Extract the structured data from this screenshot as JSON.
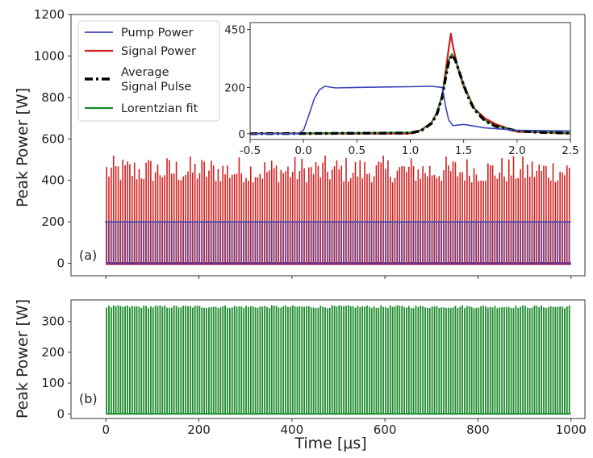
{
  "colors": {
    "pump": "#3b46b8",
    "signal": "#d11f1f",
    "average": "#000000",
    "lorentzian": "#1a8a2a",
    "overlap": "#6a2f9a"
  },
  "chart_data": [
    {
      "id": "panel-a",
      "type": "line",
      "panel_label": "(a)",
      "xlabel": "",
      "ylabel": "Peak Power [W]",
      "xlim": [
        -75,
        1030
      ],
      "ylim": [
        -60,
        1200
      ],
      "yticks": [
        0,
        200,
        400,
        600,
        800,
        1000,
        1200
      ],
      "pulse_train": {
        "x_start": 0,
        "x_end": 1000,
        "pulse_period": 5,
        "pump_level": 200,
        "signal_peak_range": [
          390,
          520
        ],
        "signal_peak_typical": 440
      },
      "legend": {
        "placement": "top-left",
        "entries": [
          "Pump Power",
          "Signal Power",
          "Average\nSignal Pulse",
          "Lorentzian fit"
        ]
      },
      "series": [
        {
          "name": "Pump Power",
          "color_key": "pump"
        },
        {
          "name": "Signal Power",
          "color_key": "signal"
        },
        {
          "name": "Average\nSignal Pulse",
          "color_key": "average"
        },
        {
          "name": "Lorentzian fit",
          "color_key": "lorentzian"
        }
      ]
    },
    {
      "id": "inset",
      "type": "line",
      "xlabel": "",
      "ylabel": "",
      "xlim": [
        -0.5,
        2.5
      ],
      "ylim": [
        -25,
        480
      ],
      "xticks": [
        -0.5,
        0.0,
        0.5,
        1.0,
        1.5,
        2.0,
        2.5
      ],
      "yticks": [
        0,
        200,
        450
      ],
      "series": [
        {
          "name": "Pump Power",
          "x": [
            -0.5,
            -0.05,
            0.0,
            0.05,
            0.1,
            0.15,
            0.2,
            0.3,
            0.5,
            0.8,
            1.0,
            1.2,
            1.3,
            1.33,
            1.36,
            1.4,
            1.5,
            1.7,
            2.0,
            2.5
          ],
          "y": [
            0,
            0,
            15,
            80,
            150,
            190,
            205,
            198,
            200,
            202,
            203,
            205,
            200,
            120,
            60,
            35,
            40,
            25,
            15,
            12
          ]
        },
        {
          "name": "Signal Power",
          "x": [
            -0.5,
            1.0,
            1.1,
            1.2,
            1.25,
            1.3,
            1.33,
            1.36,
            1.38,
            1.4,
            1.42,
            1.45,
            1.5,
            1.55,
            1.6,
            1.7,
            1.8,
            2.0,
            2.2,
            2.5
          ],
          "y": [
            0,
            3,
            15,
            50,
            90,
            170,
            260,
            360,
            430,
            380,
            330,
            280,
            210,
            160,
            110,
            60,
            35,
            15,
            8,
            3
          ]
        },
        {
          "name": "Average Signal Pulse",
          "x": [
            -0.5,
            1.0,
            1.1,
            1.2,
            1.25,
            1.3,
            1.33,
            1.36,
            1.39,
            1.42,
            1.45,
            1.5,
            1.55,
            1.6,
            1.7,
            1.8,
            2.0,
            2.2,
            2.5
          ],
          "y": [
            0,
            3,
            12,
            45,
            85,
            160,
            240,
            310,
            340,
            320,
            280,
            210,
            150,
            105,
            55,
            32,
            12,
            6,
            2
          ]
        },
        {
          "name": "Lorentzian fit",
          "x": [
            -0.5,
            1.0,
            1.1,
            1.2,
            1.25,
            1.3,
            1.33,
            1.36,
            1.39,
            1.42,
            1.45,
            1.5,
            1.55,
            1.6,
            1.7,
            1.8,
            2.0,
            2.2,
            2.5
          ],
          "y": [
            0,
            6,
            16,
            48,
            88,
            165,
            245,
            315,
            345,
            325,
            285,
            215,
            155,
            110,
            58,
            34,
            14,
            8,
            4
          ]
        }
      ]
    },
    {
      "id": "panel-b",
      "type": "line",
      "panel_label": "(b)",
      "xlabel": "Time [μs]",
      "ylabel": "Peak Power [W]",
      "xlim": [
        -75,
        1030
      ],
      "ylim": [
        -15,
        370
      ],
      "xticks": [
        0,
        200,
        400,
        600,
        800,
        1000
      ],
      "yticks": [
        0,
        100,
        200,
        300
      ],
      "pulse_train": {
        "x_start": 0,
        "x_end": 1000,
        "pulse_period": 5,
        "fit_peak_range": [
          343,
          353
        ],
        "fit_peak_typical": 348
      },
      "series": [
        {
          "name": "Lorentzian fit",
          "color_key": "lorentzian"
        }
      ]
    }
  ]
}
